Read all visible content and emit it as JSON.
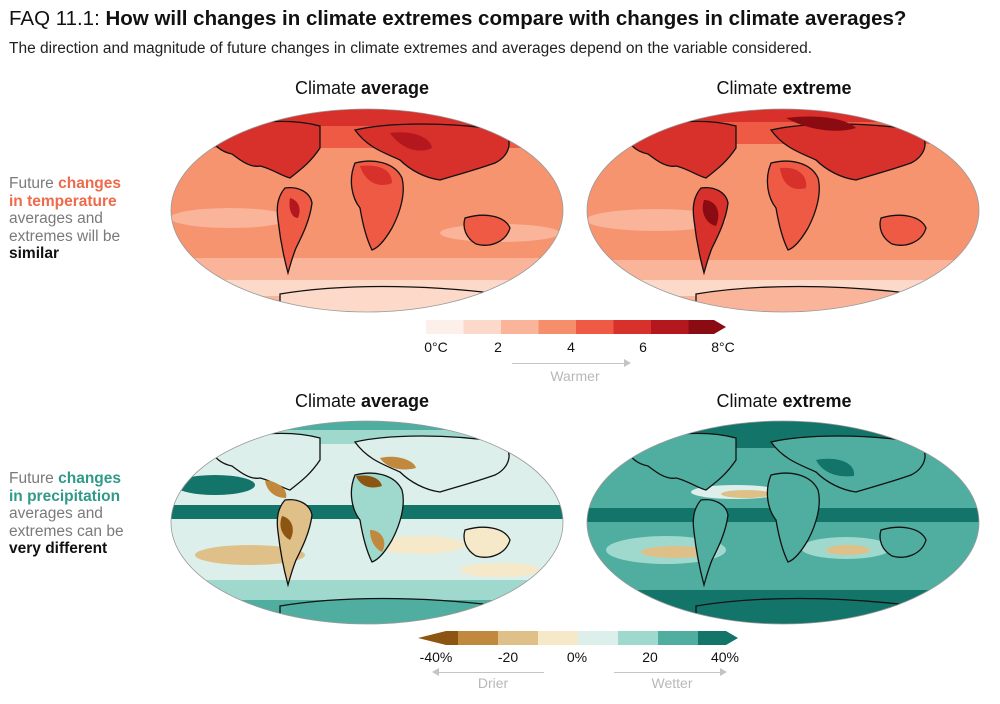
{
  "header": {
    "faq_label": "FAQ 11.1:",
    "question": "How will changes in climate extremes compare with changes in climate averages?",
    "subtitle": "The direction and magnitude of future changes in climate extremes and averages depend on the variable considered."
  },
  "columns": {
    "average": {
      "prefix": "Climate",
      "emphasis": "average"
    },
    "extreme": {
      "prefix": "Climate",
      "emphasis": "extreme"
    }
  },
  "rows": {
    "temperature": {
      "line1_plain": "Future",
      "line1_highlight": "changes",
      "line2_highlight": "in temperature",
      "line3": "averages and",
      "line4": "extremes will be",
      "line5_strong": "similar"
    },
    "precipitation": {
      "line1_plain": "Future",
      "line1_highlight": "changes",
      "line2_highlight": "in precipitation",
      "line3": "averages and",
      "line4": "extremes can be",
      "line5_strong": "very different"
    }
  },
  "temperature_scale": {
    "colors": [
      "#fdefe9",
      "#fcd9c9",
      "#f9b49a",
      "#f68e6c",
      "#ee5a43",
      "#d8302b",
      "#b5171f",
      "#8a0c12"
    ],
    "ticks": [
      "0°C",
      "2",
      "4",
      "6",
      "8°C"
    ],
    "direction_label": "Warmer"
  },
  "precipitation_scale": {
    "colors": [
      "#8c5511",
      "#c1893d",
      "#dfc088",
      "#f6e9c9",
      "#dcefea",
      "#9fd9cd",
      "#4fae9f",
      "#13746a"
    ],
    "ticks": [
      "-40%",
      "-20",
      "0%",
      "20",
      "40%"
    ],
    "direction_left": "Drier",
    "direction_right": "Wetter"
  }
}
